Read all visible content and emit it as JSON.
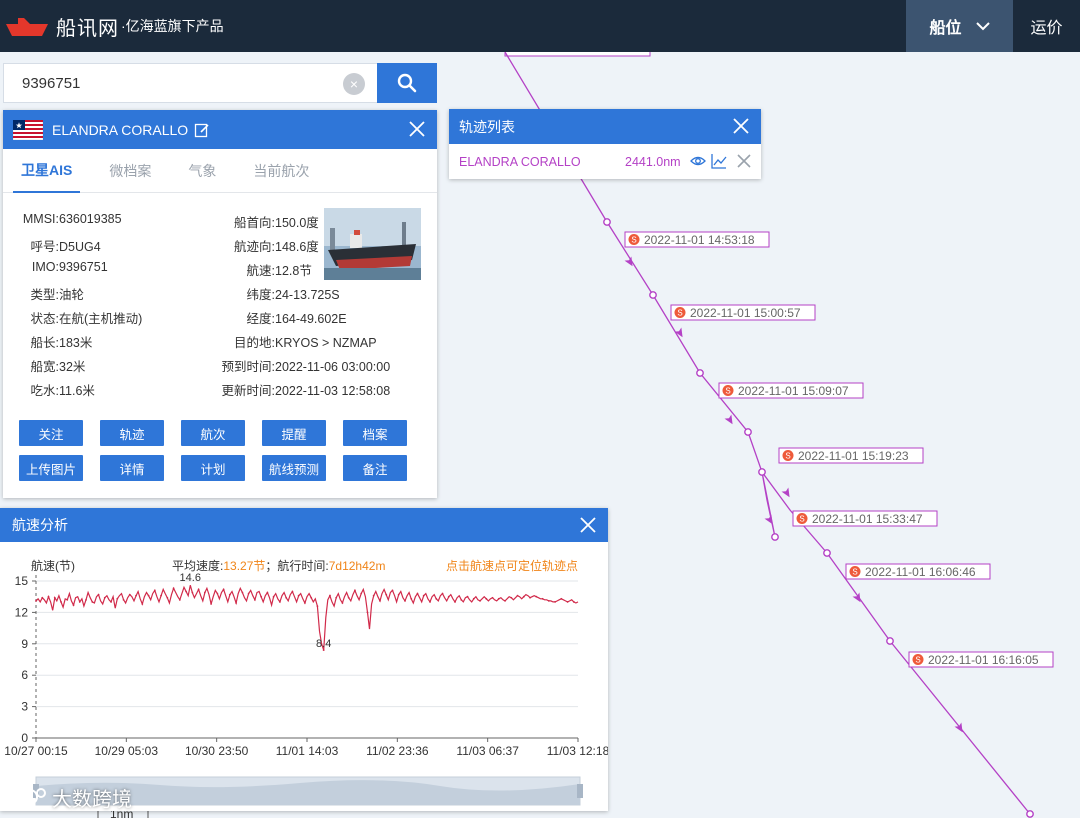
{
  "header": {
    "brand": "船讯网",
    "sub": "·亿海蓝旗下产品",
    "nav_ship": "船位",
    "nav_freight": "运价"
  },
  "search": {
    "value": "9396751"
  },
  "ship": {
    "name": "ELANDRA CORALLO",
    "tabs": [
      "卫星AIS",
      "微档案",
      "气象",
      "当前航次"
    ],
    "left": [
      {
        "k": "MMSI:",
        "v": "636019385"
      },
      {
        "k": "呼号:",
        "v": "D5UG4"
      },
      {
        "k": "IMO:",
        "v": "9396751"
      },
      {
        "k": "类型:",
        "v": "油轮"
      },
      {
        "k": "状态:",
        "v": "在航(主机推动)"
      },
      {
        "k": "船长:",
        "v": "183米"
      },
      {
        "k": "船宽:",
        "v": "32米"
      },
      {
        "k": "吃水:",
        "v": "11.6米"
      }
    ],
    "right": [
      {
        "k": "船首向:",
        "v": "150.0度"
      },
      {
        "k": "航迹向:",
        "v": "148.6度"
      },
      {
        "k": "航速:",
        "v": "12.8节"
      },
      {
        "k": "纬度:",
        "v": "24-13.725S"
      },
      {
        "k": "经度:",
        "v": "164-49.602E"
      },
      {
        "k": "目的地:",
        "v": "KRYOS > NZMAP"
      },
      {
        "k": "预到时间:",
        "v": "2022-11-06 03:00:00"
      },
      {
        "k": "更新时间:",
        "v": "2022-11-03 12:58:08"
      }
    ],
    "buttons": [
      "关注",
      "轨迹",
      "航次",
      "提醒",
      "档案",
      "上传图片",
      "详情",
      "计划",
      "航线预测",
      "备注"
    ]
  },
  "track_list": {
    "title": "轨迹列表",
    "items": [
      {
        "name": "ELANDRA CORALLO",
        "distance": "2441.0nm"
      }
    ]
  },
  "track_labels": [
    "2022-11-01 14:53:18",
    "2022-11-01 15:00:57",
    "2022-11-01 15:09:07",
    "2022-11-01 15:19:23",
    "2022-11-01 15:33:47",
    "2022-11-01 16:06:46",
    "2022-11-01 16:16:05"
  ],
  "track_marker_glyph": "S",
  "speed_panel": {
    "title": "航速分析",
    "unit_label": "航速(节)",
    "avg_label": "平均速度:",
    "avg_value": "13.27节",
    "sep": "；",
    "time_label": "航行时间:",
    "time_value": "7d12h42m",
    "hint": "点击航速点可定位轨迹点"
  },
  "chart_data": {
    "type": "line",
    "title": "",
    "xlabel": "",
    "ylabel": "航速(节)",
    "ylim": [
      0,
      15
    ],
    "yticks": [
      "0",
      "3",
      "6",
      "9",
      "12",
      "15"
    ],
    "x_tick_labels": [
      "10/27 00:15",
      "10/29 05:03",
      "10/30 23:50",
      "11/01 14:03",
      "11/02 23:36",
      "11/03 06:37",
      "11/03 12:18"
    ],
    "annotations": [
      {
        "label": "14.6",
        "value": 14.6,
        "index": 74
      },
      {
        "label": "8.4",
        "value": 8.4,
        "index": 138
      }
    ],
    "series": [
      {
        "color": "#d12a4a",
        "values": [
          13.1,
          13.3,
          13.0,
          13.4,
          13.2,
          12.9,
          13.5,
          13.0,
          12.2,
          13.4,
          13.1,
          13.6,
          13.0,
          12.5,
          13.3,
          13.2,
          13.8,
          13.1,
          12.7,
          13.4,
          13.5,
          13.0,
          13.3,
          12.6,
          13.2,
          13.9,
          13.4,
          13.0,
          12.9,
          13.5,
          13.7,
          13.1,
          12.8,
          13.4,
          13.6,
          13.2,
          13.0,
          13.5,
          12.4,
          13.3,
          13.6,
          13.8,
          13.2,
          12.9,
          13.4,
          13.7,
          13.5,
          13.1,
          13.6,
          14.0,
          13.3,
          12.8,
          13.5,
          13.9,
          13.6,
          13.2,
          13.8,
          14.1,
          13.5,
          13.0,
          13.6,
          14.2,
          13.8,
          13.4,
          12.9,
          13.7,
          14.3,
          13.9,
          13.5,
          13.2,
          13.8,
          14.4,
          14.0,
          13.6,
          14.6,
          13.9,
          13.4,
          13.8,
          14.2,
          13.6,
          13.1,
          13.9,
          14.3,
          13.7,
          12.8,
          13.5,
          14.1,
          13.8,
          13.3,
          13.9,
          14.2,
          13.6,
          13.0,
          13.7,
          14.0,
          13.5,
          12.9,
          13.8,
          14.3,
          13.9,
          13.4,
          13.1,
          13.8,
          14.1,
          13.6,
          13.2,
          13.9,
          14.0,
          13.5,
          13.0,
          13.6,
          13.9,
          13.4,
          12.7,
          13.5,
          13.8,
          13.3,
          13.0,
          13.6,
          13.9,
          13.4,
          13.1,
          13.7,
          14.0,
          13.5,
          13.0,
          13.6,
          13.8,
          13.3,
          12.9,
          13.5,
          13.8,
          13.4,
          13.0,
          13.3,
          12.6,
          10.2,
          9.0,
          8.4,
          11.5,
          13.2,
          13.6,
          13.0,
          12.6,
          13.4,
          13.8,
          13.2,
          12.9,
          13.5,
          13.9,
          13.4,
          13.1,
          13.7,
          14.1,
          13.6,
          13.2,
          13.8,
          14.2,
          13.5,
          12.0,
          10.4,
          12.8,
          13.6,
          14.0,
          13.5,
          13.1,
          13.8,
          14.2,
          13.7,
          13.2,
          13.9,
          14.1,
          13.6,
          13.0,
          13.7,
          14.0,
          13.4,
          13.1,
          13.6,
          13.9,
          13.3,
          12.9,
          13.5,
          13.8,
          13.4,
          13.0,
          13.6,
          13.8,
          13.3,
          13.0,
          13.5,
          13.7,
          13.3,
          13.1,
          13.6,
          13.8,
          13.4,
          13.1,
          13.5,
          13.7,
          13.3,
          13.0,
          13.4,
          13.6,
          13.2,
          13.0,
          13.4,
          13.5,
          13.2,
          13.0,
          13.3,
          13.5,
          13.2,
          13.1,
          13.3,
          13.5,
          13.3,
          13.1,
          13.3,
          13.4,
          13.2,
          13.1,
          13.3,
          13.4,
          13.2,
          13.1,
          13.3,
          13.5,
          13.4,
          13.2,
          13.4,
          13.6,
          13.5,
          13.3,
          13.5,
          13.7,
          13.6,
          13.4,
          13.5,
          13.6,
          13.5,
          13.4,
          13.3,
          13.3,
          13.2,
          13.2,
          13.1,
          13.1,
          13.0,
          13.0,
          13.1,
          13.2,
          13.3,
          13.2,
          13.1,
          13.0,
          13.1,
          13.2,
          13.0,
          12.9,
          13.0
        ]
      }
    ]
  },
  "watermark": "大数跨境",
  "scale_label": "1nm"
}
